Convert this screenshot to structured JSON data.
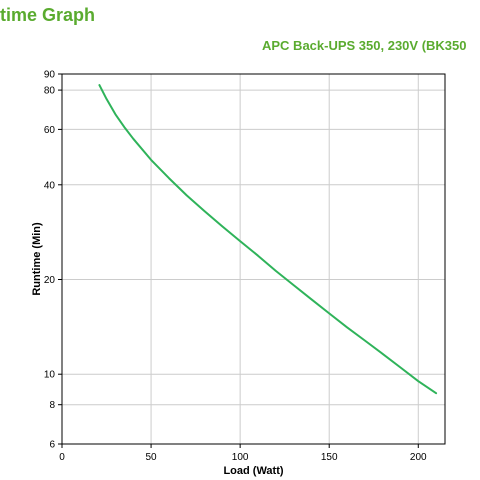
{
  "page": {
    "title": "time Graph"
  },
  "chart_data": {
    "type": "line",
    "title": "APC Back-UPS 350, 230V (BK350",
    "xlabel": "Load (Watt)",
    "ylabel": "Runtime (Min)",
    "xlim": [
      0,
      215
    ],
    "ylim": [
      6,
      90
    ],
    "y_scale": "log",
    "grid": true,
    "x_ticks": [
      0,
      50,
      100,
      150,
      200
    ],
    "y_ticks": [
      6,
      8,
      10,
      20,
      40,
      60,
      80,
      90
    ],
    "colors": {
      "series": "#2fb35a",
      "title": "#5aab2f",
      "grid": "#cccccc"
    },
    "series": [
      {
        "x": [
          21,
          25,
          30,
          35,
          40,
          50,
          60,
          70,
          80,
          90,
          100,
          110,
          120,
          130,
          140,
          150,
          160,
          170,
          180,
          190,
          200,
          210
        ],
        "values": [
          83,
          75,
          67,
          61,
          56,
          48,
          42,
          37,
          33,
          29.5,
          26.5,
          23.8,
          21.3,
          19.2,
          17.3,
          15.6,
          14.1,
          12.8,
          11.6,
          10.5,
          9.5,
          8.7
        ]
      }
    ]
  }
}
